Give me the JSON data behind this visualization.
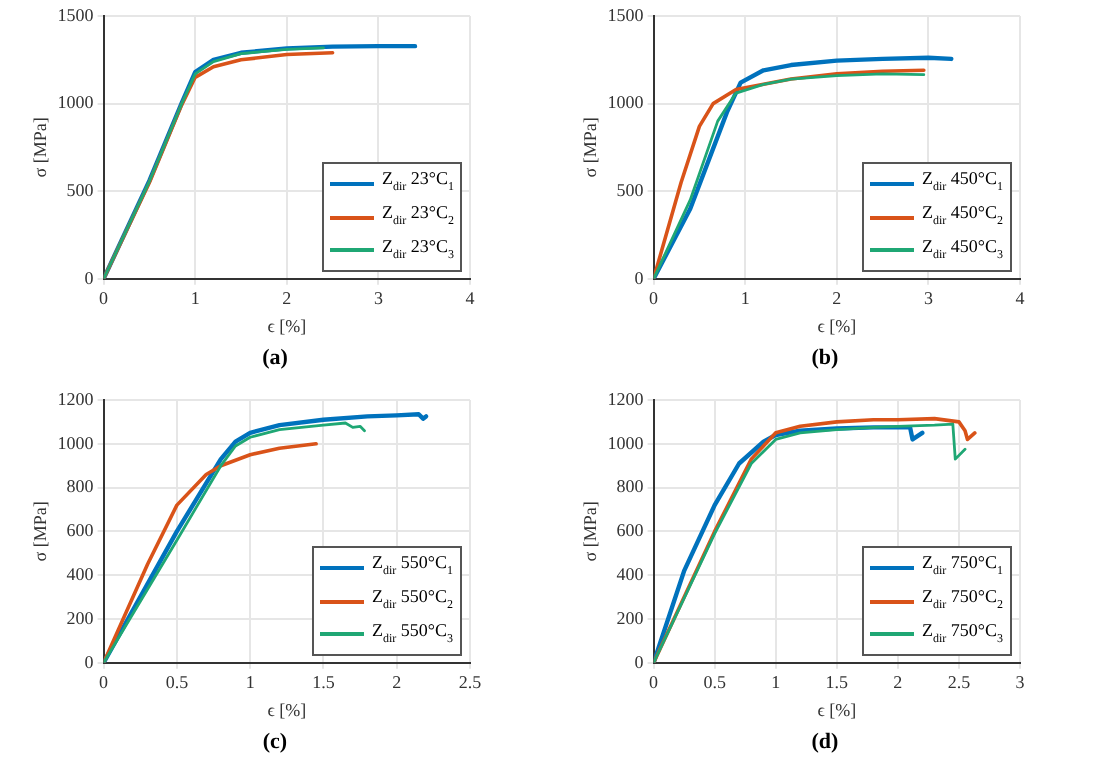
{
  "chart_data": [
    {
      "type": "line",
      "xlabel": "ϵ [%]",
      "ylabel": "σ [MPa]",
      "annotations": [
        "(a)"
      ],
      "xlim": [
        0,
        4
      ],
      "xticks": [
        0,
        1,
        2,
        3,
        4
      ],
      "ylim": [
        0,
        1500
      ],
      "yticks": [
        0,
        500,
        1000,
        1500
      ],
      "grid": true,
      "legend": "bottom right",
      "marker": "none",
      "line_style": "solid",
      "series": [
        {
          "name": "Z$_{dir}$ 23°C$_{1}$",
          "color": "#0072bd",
          "x": [
            0,
            0.5,
            0.85,
            1.0,
            1.2,
            1.5,
            2,
            2.5,
            3,
            3.4
          ],
          "values": [
            0,
            560,
            1000,
            1180,
            1250,
            1290,
            1315,
            1325,
            1328,
            1328
          ]
        },
        {
          "name": "Z$_{dir}$ 23°C$_{2}$",
          "color": "#d95319",
          "x": [
            0,
            0.5,
            0.85,
            1.0,
            1.2,
            1.5,
            2,
            2.5
          ],
          "values": [
            0,
            550,
            990,
            1150,
            1210,
            1250,
            1280,
            1290
          ]
        },
        {
          "name": "Z$_{dir}$ 23°C$_{3}$",
          "color": "#1fa774",
          "x": [
            0,
            0.5,
            0.85,
            1.0,
            1.2,
            1.5,
            2,
            2.4
          ],
          "values": [
            0,
            555,
            995,
            1170,
            1240,
            1285,
            1310,
            1318
          ]
        }
      ]
    },
    {
      "type": "line",
      "xlabel": "ϵ [%]",
      "ylabel": "σ [MPa]",
      "annotations": [
        "(b)"
      ],
      "xlim": [
        0,
        4
      ],
      "xticks": [
        0,
        1,
        2,
        3,
        4
      ],
      "ylim": [
        0,
        1500
      ],
      "yticks": [
        0,
        500,
        1000,
        1500
      ],
      "grid": true,
      "legend": "bottom right",
      "marker": "none",
      "line_style": "solid",
      "series": [
        {
          "name": "Z$_{dir}$ 450°C$_{1}$",
          "color": "#0072bd",
          "x": [
            0,
            0.4,
            0.8,
            0.95,
            1.2,
            1.5,
            2,
            2.5,
            3,
            3.25
          ],
          "values": [
            0,
            400,
            950,
            1120,
            1190,
            1220,
            1245,
            1255,
            1262,
            1255
          ]
        },
        {
          "name": "Z$_{dir}$ 450°C$_{2}$",
          "color": "#d95319",
          "x": [
            0,
            0.3,
            0.5,
            0.65,
            0.9,
            1.2,
            1.5,
            2,
            2.5,
            2.95
          ],
          "values": [
            0,
            550,
            870,
            1000,
            1080,
            1110,
            1140,
            1170,
            1185,
            1190
          ]
        },
        {
          "name": "Z$_{dir}$ 450°C$_{3}$",
          "color": "#1fa774",
          "x": [
            0,
            0.4,
            0.7,
            0.9,
            1.2,
            1.5,
            2,
            2.5,
            2.95
          ],
          "values": [
            0,
            450,
            900,
            1060,
            1110,
            1140,
            1160,
            1170,
            1165
          ]
        }
      ]
    },
    {
      "type": "line",
      "xlabel": "ϵ [%]",
      "ylabel": "σ [MPa]",
      "annotations": [
        "(c)"
      ],
      "xlim": [
        0,
        2.5
      ],
      "xticks": [
        0,
        0.5,
        1,
        1.5,
        2,
        2.5
      ],
      "ylim": [
        0,
        1200
      ],
      "yticks": [
        0,
        200,
        400,
        600,
        800,
        1000,
        1200
      ],
      "grid": true,
      "legend": "bottom right",
      "marker": "none",
      "line_style": "solid",
      "series": [
        {
          "name": "Z$_{dir}$ 550°C$_{1}$",
          "color": "#0072bd",
          "x": [
            0,
            0.5,
            0.8,
            0.9,
            1.0,
            1.2,
            1.5,
            1.8,
            2.0,
            2.15,
            2.18,
            2.2
          ],
          "values": [
            0,
            600,
            930,
            1010,
            1050,
            1085,
            1110,
            1125,
            1130,
            1135,
            1115,
            1125
          ]
        },
        {
          "name": "Z$_{dir}$ 550°C$_{2}$",
          "color": "#d95319",
          "x": [
            0,
            0.3,
            0.5,
            0.7,
            0.8,
            1.0,
            1.2,
            1.45
          ],
          "values": [
            0,
            450,
            720,
            860,
            900,
            950,
            980,
            1000
          ]
        },
        {
          "name": "Z$_{dir}$ 550°C$_{3}$",
          "color": "#1fa774",
          "x": [
            0,
            0.5,
            0.8,
            0.9,
            1.0,
            1.2,
            1.5,
            1.65,
            1.7,
            1.75,
            1.78
          ],
          "values": [
            0,
            560,
            900,
            990,
            1030,
            1065,
            1085,
            1095,
            1075,
            1080,
            1060
          ]
        }
      ]
    },
    {
      "type": "line",
      "xlabel": "ϵ [%]",
      "ylabel": "σ [MPa]",
      "annotations": [
        "(d)"
      ],
      "xlim": [
        0,
        3
      ],
      "xticks": [
        0,
        0.5,
        1,
        1.5,
        2,
        2.5,
        3
      ],
      "ylim": [
        0,
        1200
      ],
      "yticks": [
        0,
        200,
        400,
        600,
        800,
        1000,
        1200
      ],
      "grid": true,
      "legend": "bottom right",
      "marker": "none",
      "line_style": "solid",
      "series": [
        {
          "name": "Z$_{dir}$ 750°C$_{1}$",
          "color": "#0072bd",
          "x": [
            0,
            0.25,
            0.5,
            0.7,
            0.9,
            1.0,
            1.2,
            1.5,
            1.8,
            2.0,
            2.1,
            2.12,
            2.2
          ],
          "values": [
            0,
            420,
            720,
            910,
            1010,
            1040,
            1060,
            1070,
            1075,
            1075,
            1075,
            1020,
            1050
          ]
        },
        {
          "name": "Z$_{dir}$ 750°C$_{2}$",
          "color": "#d95319",
          "x": [
            0,
            0.5,
            0.8,
            1.0,
            1.2,
            1.5,
            1.8,
            2.0,
            2.3,
            2.5,
            2.55,
            2.57,
            2.63
          ],
          "values": [
            0,
            600,
            930,
            1050,
            1080,
            1100,
            1110,
            1110,
            1115,
            1100,
            1060,
            1020,
            1050
          ]
        },
        {
          "name": "Z$_{dir}$ 750°C$_{3}$",
          "color": "#1fa774",
          "x": [
            0,
            0.5,
            0.8,
            1.0,
            1.2,
            1.5,
            1.8,
            2.0,
            2.3,
            2.45,
            2.47,
            2.55
          ],
          "values": [
            0,
            590,
            910,
            1020,
            1050,
            1065,
            1075,
            1080,
            1085,
            1090,
            930,
            975
          ]
        }
      ]
    }
  ]
}
